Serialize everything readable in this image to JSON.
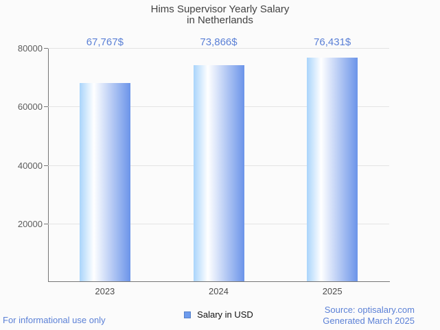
{
  "title": {
    "line1": "Hims Supervisor Yearly Salary",
    "line2": "in Netherlands"
  },
  "chart_data": {
    "type": "bar",
    "title": "Hims Supervisor Yearly Salary in Netherlands",
    "categories": [
      "2023",
      "2024",
      "2025"
    ],
    "series": [
      {
        "name": "Salary in USD",
        "values": [
          67767,
          73866,
          76431
        ]
      }
    ],
    "value_labels": [
      "67,767$",
      "73,866$",
      "76,431$"
    ],
    "xlabel": "",
    "ylabel": "",
    "ylim": [
      0,
      80000
    ],
    "yticks": [
      20000,
      40000,
      60000,
      80000
    ],
    "grid": true,
    "legend_position": "bottom",
    "bar_gradient": [
      "#a9d4fb",
      "#ffffff",
      "#6b94e9"
    ],
    "gradient_white_stop_pct": 28
  },
  "legend": {
    "label": "Salary in USD",
    "swatch_color": "#6d9bed"
  },
  "footer": {
    "left": "For informational use only",
    "source": "Source: optisalary.com",
    "generated": "Generated March 2025"
  },
  "colors": {
    "accent_blue": "#5b80d6",
    "title_gray": "#424242",
    "axis_gray": "#757575",
    "gridline_gray": "#e3e3e3"
  }
}
